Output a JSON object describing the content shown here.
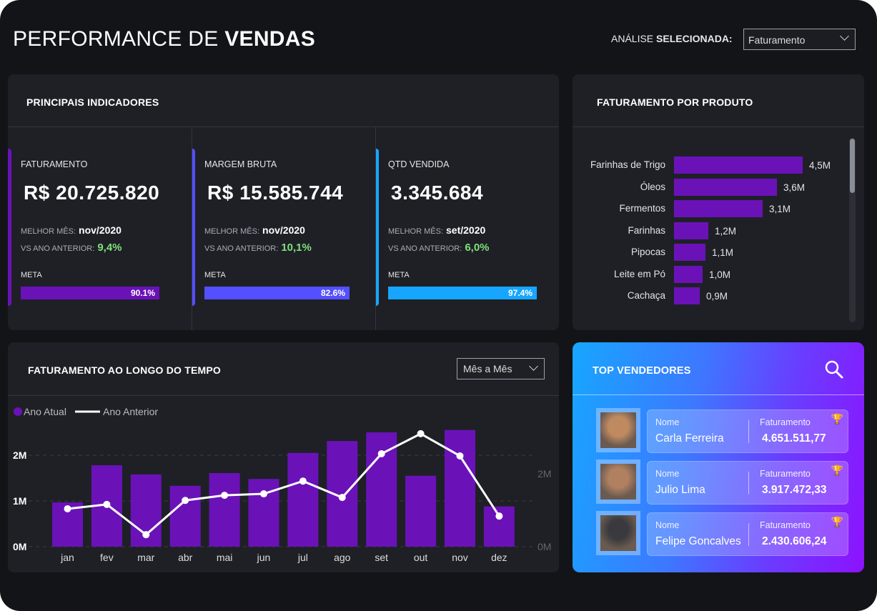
{
  "header": {
    "title_light": "PERFORMANCE DE ",
    "title_bold": "VENDAS",
    "analysis_label_light": "ANÁLISE ",
    "analysis_label_bold": "SELECIONADA:",
    "analysis_value": "Faturamento"
  },
  "kpi_panel": {
    "title": "PRINCIPAIS INDICADORES",
    "cards": [
      {
        "name": "FATURAMENTO",
        "value": "R$ 20.725.820",
        "best_label": "MELHOR MÊS:",
        "best_value": "nov/2020",
        "vs_label": "VS ANO ANTERIOR:",
        "vs_value": "9,4%",
        "meta_label": "META",
        "meta_pct": "90.1%",
        "meta_fraction": 0.901,
        "color": "#6a12b8"
      },
      {
        "name": "MARGEM BRUTA",
        "value": "R$ 15.585.744",
        "best_label": "MELHOR MÊS:",
        "best_value": "nov/2020",
        "vs_label": "VS ANO ANTERIOR:",
        "vs_value": "10,1%",
        "meta_label": "META",
        "meta_pct": "82.6%",
        "meta_fraction": 0.826,
        "color": "#5450ff"
      },
      {
        "name": "QTD VENDIDA",
        "value": "3.345.684",
        "best_label": "MELHOR MÊS:",
        "best_value": "set/2020",
        "vs_label": "VS ANO ANTERIOR:",
        "vs_value": "6,0%",
        "meta_label": "META",
        "meta_pct": "97.4%",
        "meta_fraction": 0.974,
        "color": "#17a6ff"
      }
    ]
  },
  "product_panel": {
    "title": "FATURAMENTO POR PRODUTO",
    "items": [
      {
        "label": "Farinhas de Trigo",
        "value": 4.5,
        "text": "4,5M"
      },
      {
        "label": "Óleos",
        "value": 3.6,
        "text": "3,6M"
      },
      {
        "label": "Fermentos",
        "value": 3.1,
        "text": "3,1M"
      },
      {
        "label": "Farinhas",
        "value": 1.2,
        "text": "1,2M"
      },
      {
        "label": "Pipocas",
        "value": 1.1,
        "text": "1,1M"
      },
      {
        "label": "Leite em Pó",
        "value": 1.0,
        "text": "1,0M"
      },
      {
        "label": "Cachaça",
        "value": 0.9,
        "text": "0,9M"
      }
    ]
  },
  "time_panel": {
    "title": "FATURAMENTO AO LONGO DO TEMPO",
    "dropdown": "Mês a Mês"
  },
  "chart_data": {
    "type": "bar+line",
    "categories": [
      "jan",
      "fev",
      "mar",
      "abr",
      "mai",
      "jun",
      "jul",
      "ago",
      "set",
      "out",
      "nov",
      "dez"
    ],
    "series": [
      {
        "name": "Ano Atual",
        "type": "bar",
        "axis": "left",
        "color": "#6a12b8",
        "values": [
          0.97,
          1.78,
          1.58,
          1.33,
          1.61,
          1.48,
          2.05,
          2.31,
          2.5,
          1.55,
          2.55,
          0.88
        ]
      },
      {
        "name": "Ano Anterior",
        "type": "line",
        "axis": "right",
        "color": "#ffffff",
        "values": [
          1.04,
          1.16,
          0.33,
          1.27,
          1.41,
          1.45,
          1.8,
          1.35,
          2.55,
          3.1,
          2.49,
          0.84
        ]
      }
    ],
    "left_ticks": [
      "0M",
      "1M",
      "2M"
    ],
    "left_ylim": [
      0,
      2.8
    ],
    "right_ticks": [
      "0M",
      "2M"
    ],
    "right_ylim": [
      0,
      3.5
    ],
    "legend": "top-left",
    "grid": true
  },
  "top_panel": {
    "title": "TOP VENDEDORES",
    "sellers": [
      {
        "name_label": "Nome",
        "name": "Carla Ferreira",
        "rev_label": "Faturamento",
        "revenue": "4.651.511,77",
        "trophy": "#f0a030",
        "photo": "#c08a60"
      },
      {
        "name_label": "Nome",
        "name": "Julio Lima",
        "rev_label": "Faturamento",
        "revenue": "3.917.472,33",
        "trophy": "#d0d0d0",
        "photo": "#b08060"
      },
      {
        "name_label": "Nome",
        "name": "Felipe Goncalves",
        "rev_label": "Faturamento",
        "revenue": "2.430.606,24",
        "trophy": "#e8904a",
        "photo": "#3a3a3e"
      }
    ]
  }
}
